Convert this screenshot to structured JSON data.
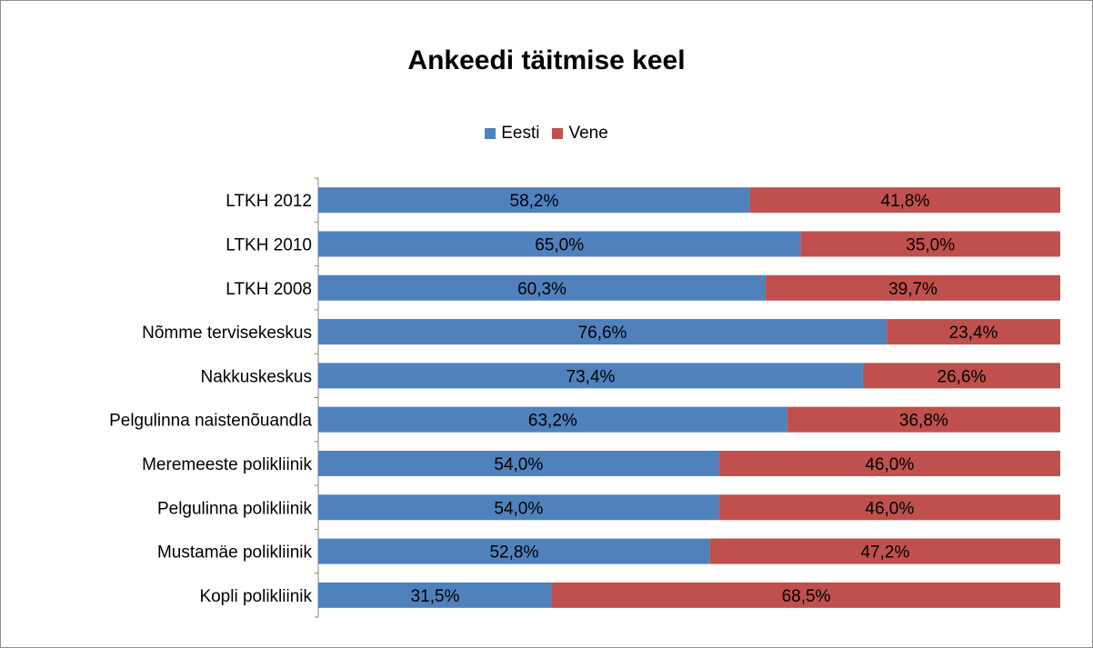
{
  "chart_data": {
    "type": "bar",
    "orientation": "horizontal",
    "stacked": "percent",
    "title": "Ankeedi täitmise keel",
    "legend_position": "top",
    "categories": [
      "LTKH 2012",
      "LTKH 2010",
      "LTKH 2008",
      "Nõmme tervisekeskus",
      "Nakkuskeskus",
      "Pelgulinna naistenõuandla",
      "Meremeeste polikliinik",
      "Pelgulinna polikliinik",
      "Mustamäe polikliinik",
      "Kopli polikliinik"
    ],
    "series": [
      {
        "name": "Eesti",
        "color": "#4f81bd",
        "values": [
          58.2,
          65.0,
          60.3,
          76.6,
          73.4,
          63.2,
          54.0,
          54.0,
          52.8,
          31.5
        ],
        "labels": [
          "58,2%",
          "65,0%",
          "60,3%",
          "76,6%",
          "73,4%",
          "63,2%",
          "54,0%",
          "54,0%",
          "52,8%",
          "31,5%"
        ]
      },
      {
        "name": "Vene",
        "color": "#c0504d",
        "values": [
          41.8,
          35.0,
          39.7,
          23.4,
          26.6,
          36.8,
          46.0,
          46.0,
          47.2,
          68.5
        ],
        "labels": [
          "41,8%",
          "35,0%",
          "39,7%",
          "23,4%",
          "26,6%",
          "36,8%",
          "46,0%",
          "46,0%",
          "47,2%",
          "68,5%"
        ]
      }
    ],
    "xlim": [
      0,
      100
    ],
    "grid": false
  }
}
